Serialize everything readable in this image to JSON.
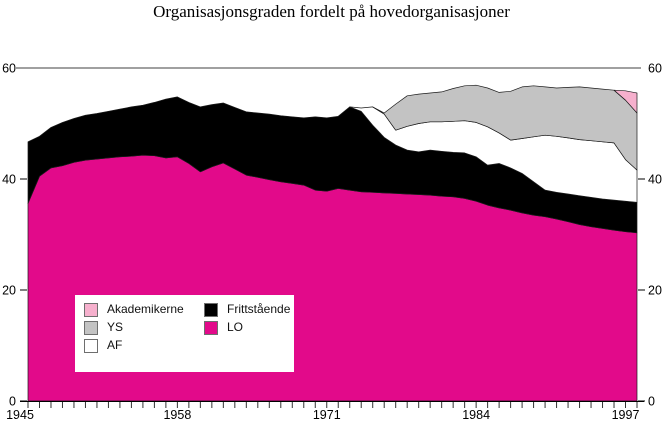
{
  "title": "Organisasjonsgraden fordelt på hovedorganisasjoner",
  "colors": {
    "lo_magenta": "#e20a8a",
    "akademikerne_pink": "#f6b0cd",
    "ys_gray": "#c3c3c3",
    "af_white": "#ffffff",
    "frittstaaende_black": "#000000",
    "axis": "#000000"
  },
  "axes": {
    "ylim": [
      0,
      60
    ],
    "y_ticks": [
      60,
      40,
      20,
      0
    ],
    "x_labels": [
      1945,
      1958,
      1971,
      1984,
      1997
    ],
    "x_range": [
      1945,
      1998
    ],
    "gridline_at": 60
  },
  "legend": {
    "columns": [
      [
        {
          "label": "Akademikerne",
          "color": "#f6b0cd"
        },
        {
          "label": "YS",
          "color": "#c3c3c3"
        },
        {
          "label": "AF",
          "color": "#ffffff"
        }
      ],
      [
        {
          "label": "Frittstående",
          "color": "#000000"
        },
        {
          "label": "LO",
          "color": "#e20a8a"
        }
      ]
    ]
  },
  "chart_data": {
    "type": "area",
    "stacked": true,
    "title": "Organisasjonsgraden fordelt på hovedorganisasjoner",
    "xlabel": "",
    "ylabel": "",
    "ylim": [
      0,
      60
    ],
    "legend_position": "inside-bottom-left",
    "x": [
      1945,
      1946,
      1947,
      1948,
      1949,
      1950,
      1951,
      1952,
      1953,
      1954,
      1955,
      1956,
      1957,
      1958,
      1959,
      1960,
      1961,
      1962,
      1963,
      1964,
      1965,
      1966,
      1967,
      1968,
      1969,
      1970,
      1971,
      1972,
      1973,
      1974,
      1975,
      1976,
      1977,
      1978,
      1979,
      1980,
      1981,
      1982,
      1983,
      1984,
      1985,
      1986,
      1987,
      1988,
      1989,
      1990,
      1991,
      1992,
      1993,
      1994,
      1995,
      1996,
      1997,
      1998
    ],
    "series": [
      {
        "name": "LO",
        "color": "#e20a8a",
        "values": [
          35.6,
          40.5,
          42.0,
          42.4,
          43.0,
          43.4,
          43.6,
          43.8,
          44.0,
          44.1,
          44.3,
          44.2,
          43.8,
          44.0,
          42.8,
          41.3,
          42.2,
          42.9,
          41.8,
          40.7,
          40.3,
          39.9,
          39.5,
          39.2,
          38.9,
          38.0,
          37.8,
          38.3,
          38.0,
          37.7,
          37.6,
          37.5,
          37.4,
          37.3,
          37.2,
          37.1,
          36.9,
          36.8,
          36.5,
          36.0,
          35.3,
          34.8,
          34.4,
          33.9,
          33.5,
          33.2,
          32.8,
          32.3,
          31.8,
          31.4,
          31.1,
          30.8,
          30.5,
          30.3
        ]
      },
      {
        "name": "Frittstående",
        "color": "#000000",
        "values": [
          11.1,
          7.2,
          7.3,
          7.8,
          7.9,
          8.1,
          8.2,
          8.4,
          8.6,
          8.9,
          9.0,
          9.6,
          10.6,
          10.8,
          11.0,
          11.7,
          11.2,
          10.8,
          11.1,
          11.4,
          11.6,
          11.8,
          11.9,
          12.0,
          12.1,
          13.2,
          13.2,
          13.0,
          15.0,
          14.5,
          12.1,
          10.0,
          8.7,
          7.9,
          7.7,
          8.1,
          8.1,
          8.0,
          8.2,
          8.0,
          7.2,
          8.0,
          7.6,
          7.1,
          6.0,
          4.8,
          4.8,
          5.0,
          5.2,
          5.3,
          5.3,
          5.4,
          5.5,
          5.5
        ]
      },
      {
        "name": "AF",
        "color": "#ffffff",
        "values": [
          0,
          0,
          0,
          0,
          0,
          0,
          0,
          0,
          0,
          0,
          0,
          0,
          0,
          0,
          0,
          0,
          0,
          0,
          0,
          0,
          0,
          0,
          0,
          0,
          0,
          0,
          0,
          0,
          0,
          0.6,
          3.3,
          4.2,
          2.7,
          4.3,
          5.1,
          5.1,
          5.3,
          5.6,
          5.8,
          6.2,
          6.9,
          5.5,
          5.0,
          6.3,
          8.1,
          9.9,
          10.1,
          10.1,
          10.1,
          10.2,
          10.3,
          10.3,
          7.5,
          5.8
        ]
      },
      {
        "name": "YS",
        "color": "#c3c3c3",
        "values": [
          0,
          0,
          0,
          0,
          0,
          0,
          0,
          0,
          0,
          0,
          0,
          0,
          0,
          0,
          0,
          0,
          0,
          0,
          0,
          0,
          0,
          0,
          0,
          0,
          0,
          0,
          0,
          0,
          0,
          0,
          0,
          0.2,
          4.7,
          5.5,
          5.3,
          5.2,
          5.4,
          5.9,
          6.3,
          6.7,
          7.0,
          7.3,
          8.8,
          9.3,
          9.2,
          8.7,
          8.7,
          9.1,
          9.5,
          9.5,
          9.5,
          9.5,
          10.7,
          10.3
        ]
      },
      {
        "name": "Akademikerne",
        "color": "#f6b0cd",
        "values": [
          0,
          0,
          0,
          0,
          0,
          0,
          0,
          0,
          0,
          0,
          0,
          0,
          0,
          0,
          0,
          0,
          0,
          0,
          0,
          0,
          0,
          0,
          0,
          0,
          0,
          0,
          0,
          0,
          0,
          0,
          0,
          0,
          0,
          0,
          0,
          0,
          0,
          0,
          0,
          0,
          0,
          0,
          0,
          0,
          0,
          0,
          0,
          0,
          0,
          0,
          0,
          0,
          1.7,
          3.6
        ]
      }
    ]
  }
}
